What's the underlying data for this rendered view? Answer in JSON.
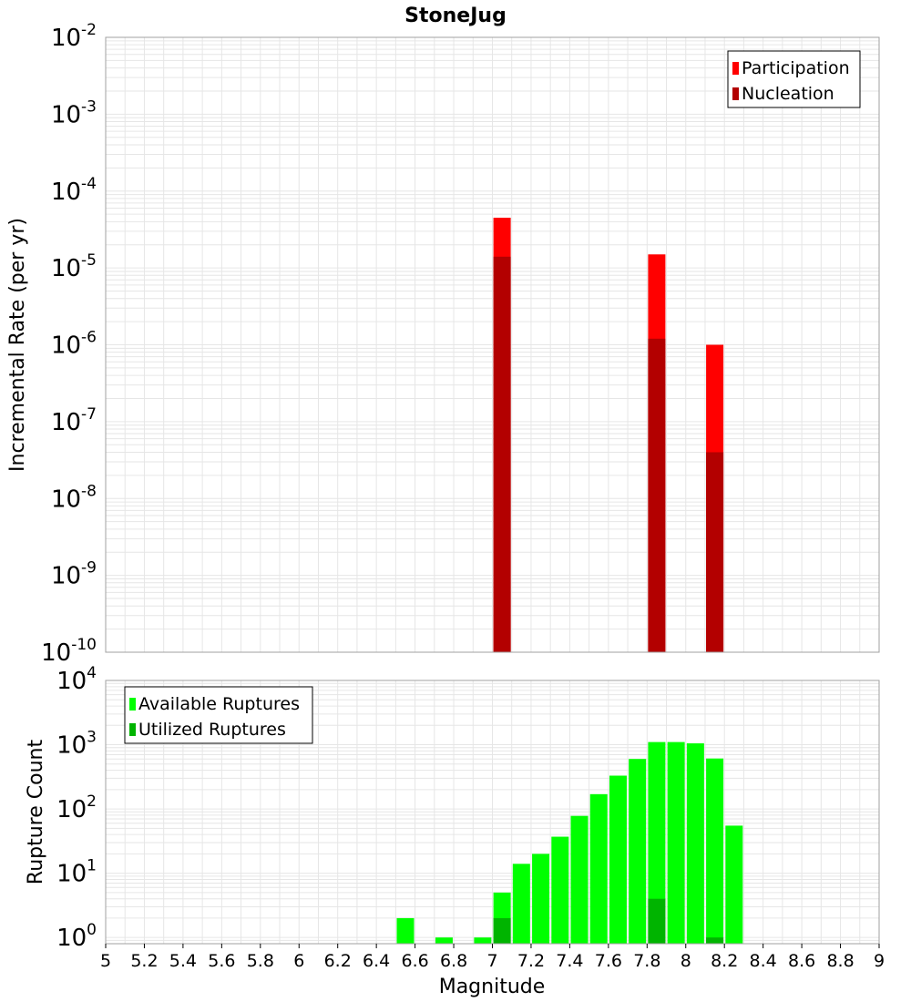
{
  "title": "StoneJug",
  "xlabel": "Magnitude",
  "colors": {
    "participation": "#ff0000",
    "nucleation": "#b30000",
    "available": "#00ff00",
    "utilized": "#00b400",
    "grid": "#e6e6e6",
    "frame": "#a0a0a0"
  },
  "chart_data": [
    {
      "type": "bar",
      "title": "StoneJug",
      "ylabel": "Incremental Rate (per yr)",
      "xlim": [
        5,
        9
      ],
      "ylim": [
        1e-10,
        0.01
      ],
      "yscale": "log",
      "grid": true,
      "legend_position": "top-right",
      "legend": [
        "Participation",
        "Nucleation"
      ],
      "series": [
        {
          "name": "Participation",
          "x": [
            7.05,
            7.85,
            8.15
          ],
          "values": [
            4.5e-05,
            1.5e-05,
            1e-06
          ]
        },
        {
          "name": "Nucleation",
          "x": [
            7.05,
            7.85,
            8.15
          ],
          "values": [
            1.4e-05,
            1.2e-06,
            4e-08
          ]
        }
      ]
    },
    {
      "type": "bar",
      "xlabel": "Magnitude",
      "ylabel": "Rupture Count",
      "xlim": [
        5,
        9
      ],
      "ylim": [
        0.8,
        10000
      ],
      "yscale": "log",
      "grid": true,
      "legend_position": "top-left",
      "legend": [
        "Available Ruptures",
        "Utilized Ruptures"
      ],
      "x_ticks": [
        "5",
        "5.2",
        "5.4",
        "5.6",
        "5.8",
        "6",
        "6.2",
        "6.4",
        "6.6",
        "6.8",
        "7",
        "7.2",
        "7.4",
        "7.6",
        "7.8",
        "8",
        "8.2",
        "8.4",
        "8.6",
        "8.8",
        "9"
      ],
      "series": [
        {
          "name": "Available Ruptures",
          "x": [
            6.55,
            6.75,
            6.95,
            7.05,
            7.15,
            7.25,
            7.35,
            7.45,
            7.55,
            7.65,
            7.75,
            7.85,
            7.95,
            8.05,
            8.15,
            8.25
          ],
          "values": [
            2,
            1,
            1,
            5,
            14,
            20,
            37,
            78,
            170,
            330,
            600,
            1100,
            1100,
            1050,
            610,
            55
          ]
        },
        {
          "name": "Utilized Ruptures",
          "x": [
            7.05,
            7.85,
            8.15
          ],
          "values": [
            2,
            4,
            1
          ]
        }
      ]
    }
  ]
}
